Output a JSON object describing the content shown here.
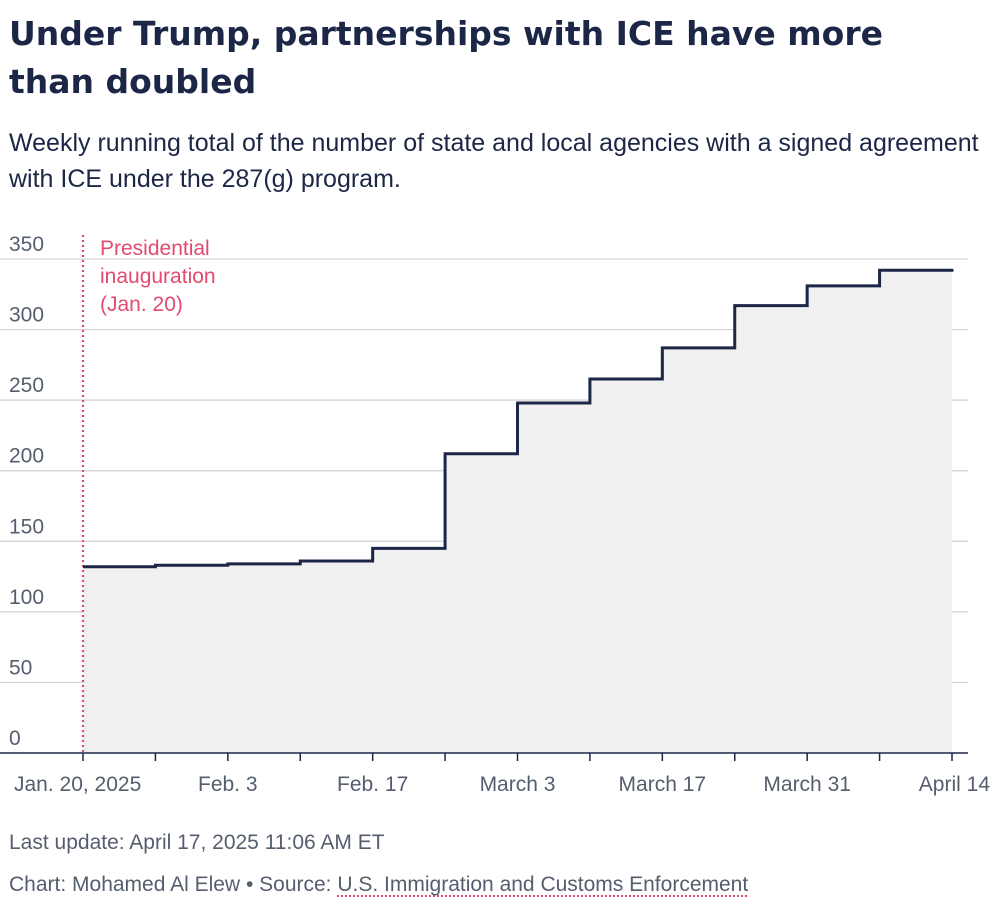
{
  "title": "Under Trump, partnerships with ICE have more than doubled",
  "subtitle": "Weekly running total of the number of state and local agencies with a signed agreement with ICE under the 287(g) program.",
  "footer": {
    "last_update": "Last update: April 17, 2025 11:06 AM ET",
    "credit": "Chart: Mohamed Al Elew",
    "separator": " • ",
    "source_prefix": "Source: ",
    "source_name": "U.S. Immigration and Customs Enforcement"
  },
  "colors": {
    "line": "#1c2647",
    "fill": "#f0f0f1",
    "grid": "#d3d3d3",
    "annotation": "#e24a6f",
    "axis": "#1c2647"
  },
  "chart_data": {
    "type": "area",
    "step": "after",
    "x": [
      "2025-01-20",
      "2025-01-27",
      "2025-02-03",
      "2025-02-10",
      "2025-02-17",
      "2025-02-24",
      "2025-03-03",
      "2025-03-10",
      "2025-03-17",
      "2025-03-24",
      "2025-03-31",
      "2025-04-07"
    ],
    "values": [
      132,
      133,
      134,
      136,
      145,
      212,
      248,
      265,
      287,
      317,
      331,
      342
    ],
    "end_x": "2025-04-14",
    "end_value": 343,
    "ylim": [
      0,
      350
    ],
    "yticks": [
      0,
      50,
      100,
      150,
      200,
      250,
      300,
      350
    ],
    "xticks": [
      "2025-01-20",
      "2025-01-27",
      "2025-02-03",
      "2025-02-10",
      "2025-02-17",
      "2025-02-24",
      "2025-03-03",
      "2025-03-10",
      "2025-03-17",
      "2025-03-24",
      "2025-03-31",
      "2025-04-07",
      "2025-04-14"
    ],
    "xtick_labels": [
      {
        "x": "2025-01-20",
        "label": "Jan. 20, 2025"
      },
      {
        "x": "2025-02-03",
        "label": "Feb. 3"
      },
      {
        "x": "2025-02-17",
        "label": "Feb. 17"
      },
      {
        "x": "2025-03-03",
        "label": "March 3"
      },
      {
        "x": "2025-03-17",
        "label": "March 17"
      },
      {
        "x": "2025-03-31",
        "label": "March 31"
      },
      {
        "x": "2025-04-14",
        "label": "April 14"
      }
    ],
    "grid": true,
    "annotation": {
      "x": "2025-01-20",
      "lines": [
        "Presidential",
        "inauguration",
        "(Jan. 20)"
      ]
    }
  }
}
